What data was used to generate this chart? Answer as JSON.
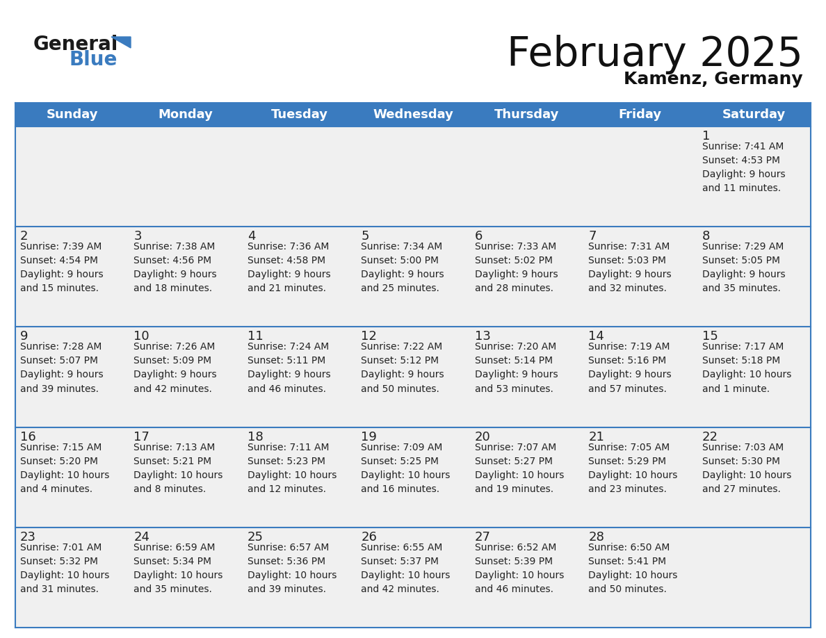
{
  "title": "February 2025",
  "subtitle": "Kamenz, Germany",
  "header_color": "#3a7bbf",
  "header_text_color": "#ffffff",
  "cell_bg": "#f0f0f0",
  "line_color": "#3a7bbf",
  "text_color": "#222222",
  "days_of_week": [
    "Sunday",
    "Monday",
    "Tuesday",
    "Wednesday",
    "Thursday",
    "Friday",
    "Saturday"
  ],
  "weeks": [
    [
      {
        "day": null,
        "info": null
      },
      {
        "day": null,
        "info": null
      },
      {
        "day": null,
        "info": null
      },
      {
        "day": null,
        "info": null
      },
      {
        "day": null,
        "info": null
      },
      {
        "day": null,
        "info": null
      },
      {
        "day": "1",
        "info": "Sunrise: 7:41 AM\nSunset: 4:53 PM\nDaylight: 9 hours\nand 11 minutes."
      }
    ],
    [
      {
        "day": "2",
        "info": "Sunrise: 7:39 AM\nSunset: 4:54 PM\nDaylight: 9 hours\nand 15 minutes."
      },
      {
        "day": "3",
        "info": "Sunrise: 7:38 AM\nSunset: 4:56 PM\nDaylight: 9 hours\nand 18 minutes."
      },
      {
        "day": "4",
        "info": "Sunrise: 7:36 AM\nSunset: 4:58 PM\nDaylight: 9 hours\nand 21 minutes."
      },
      {
        "day": "5",
        "info": "Sunrise: 7:34 AM\nSunset: 5:00 PM\nDaylight: 9 hours\nand 25 minutes."
      },
      {
        "day": "6",
        "info": "Sunrise: 7:33 AM\nSunset: 5:02 PM\nDaylight: 9 hours\nand 28 minutes."
      },
      {
        "day": "7",
        "info": "Sunrise: 7:31 AM\nSunset: 5:03 PM\nDaylight: 9 hours\nand 32 minutes."
      },
      {
        "day": "8",
        "info": "Sunrise: 7:29 AM\nSunset: 5:05 PM\nDaylight: 9 hours\nand 35 minutes."
      }
    ],
    [
      {
        "day": "9",
        "info": "Sunrise: 7:28 AM\nSunset: 5:07 PM\nDaylight: 9 hours\nand 39 minutes."
      },
      {
        "day": "10",
        "info": "Sunrise: 7:26 AM\nSunset: 5:09 PM\nDaylight: 9 hours\nand 42 minutes."
      },
      {
        "day": "11",
        "info": "Sunrise: 7:24 AM\nSunset: 5:11 PM\nDaylight: 9 hours\nand 46 minutes."
      },
      {
        "day": "12",
        "info": "Sunrise: 7:22 AM\nSunset: 5:12 PM\nDaylight: 9 hours\nand 50 minutes."
      },
      {
        "day": "13",
        "info": "Sunrise: 7:20 AM\nSunset: 5:14 PM\nDaylight: 9 hours\nand 53 minutes."
      },
      {
        "day": "14",
        "info": "Sunrise: 7:19 AM\nSunset: 5:16 PM\nDaylight: 9 hours\nand 57 minutes."
      },
      {
        "day": "15",
        "info": "Sunrise: 7:17 AM\nSunset: 5:18 PM\nDaylight: 10 hours\nand 1 minute."
      }
    ],
    [
      {
        "day": "16",
        "info": "Sunrise: 7:15 AM\nSunset: 5:20 PM\nDaylight: 10 hours\nand 4 minutes."
      },
      {
        "day": "17",
        "info": "Sunrise: 7:13 AM\nSunset: 5:21 PM\nDaylight: 10 hours\nand 8 minutes."
      },
      {
        "day": "18",
        "info": "Sunrise: 7:11 AM\nSunset: 5:23 PM\nDaylight: 10 hours\nand 12 minutes."
      },
      {
        "day": "19",
        "info": "Sunrise: 7:09 AM\nSunset: 5:25 PM\nDaylight: 10 hours\nand 16 minutes."
      },
      {
        "day": "20",
        "info": "Sunrise: 7:07 AM\nSunset: 5:27 PM\nDaylight: 10 hours\nand 19 minutes."
      },
      {
        "day": "21",
        "info": "Sunrise: 7:05 AM\nSunset: 5:29 PM\nDaylight: 10 hours\nand 23 minutes."
      },
      {
        "day": "22",
        "info": "Sunrise: 7:03 AM\nSunset: 5:30 PM\nDaylight: 10 hours\nand 27 minutes."
      }
    ],
    [
      {
        "day": "23",
        "info": "Sunrise: 7:01 AM\nSunset: 5:32 PM\nDaylight: 10 hours\nand 31 minutes."
      },
      {
        "day": "24",
        "info": "Sunrise: 6:59 AM\nSunset: 5:34 PM\nDaylight: 10 hours\nand 35 minutes."
      },
      {
        "day": "25",
        "info": "Sunrise: 6:57 AM\nSunset: 5:36 PM\nDaylight: 10 hours\nand 39 minutes."
      },
      {
        "day": "26",
        "info": "Sunrise: 6:55 AM\nSunset: 5:37 PM\nDaylight: 10 hours\nand 42 minutes."
      },
      {
        "day": "27",
        "info": "Sunrise: 6:52 AM\nSunset: 5:39 PM\nDaylight: 10 hours\nand 46 minutes."
      },
      {
        "day": "28",
        "info": "Sunrise: 6:50 AM\nSunset: 5:41 PM\nDaylight: 10 hours\nand 50 minutes."
      },
      {
        "day": null,
        "info": null
      }
    ]
  ],
  "logo_general_color": "#1a1a1a",
  "logo_blue_color": "#3a7bbf",
  "logo_triangle_color": "#3a7bbf",
  "title_fontsize": 42,
  "subtitle_fontsize": 18,
  "header_fontsize": 13,
  "day_num_fontsize": 13,
  "info_fontsize": 10
}
